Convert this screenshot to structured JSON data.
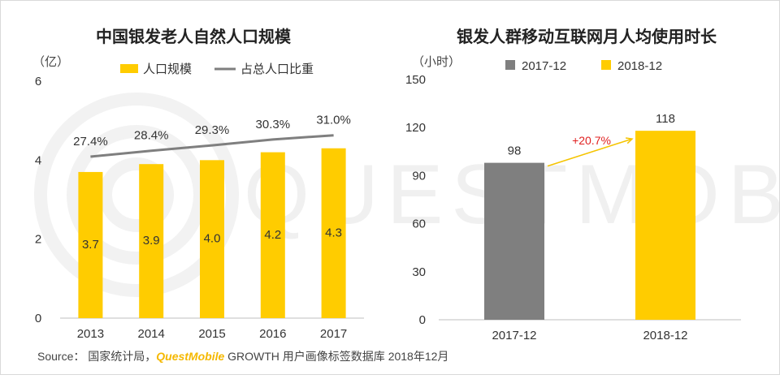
{
  "colors": {
    "yellow": "#FFCC00",
    "gray": "#7F7F7F",
    "line": "#7F7F7F",
    "arrow": "#F5C400",
    "growth": "#E02020"
  },
  "watermark": "QUESTMOBILE",
  "footer": {
    "prefix": "Source：  国家统计局，",
    "brand": "QuestMobile",
    "suffix": " GROWTH 用户画像标签数据库 2018年12月"
  },
  "chart_data": [
    {
      "type": "bar",
      "title": "中国银发老人自然人口规模",
      "unit_label": "（亿）",
      "categories": [
        "2013",
        "2014",
        "2015",
        "2016",
        "2017"
      ],
      "series": [
        {
          "name": "人口规模",
          "type": "bar",
          "values": [
            3.7,
            3.9,
            4.0,
            4.2,
            4.3
          ],
          "labels": [
            "3.7",
            "3.9",
            "4.0",
            "4.2",
            "4.3"
          ]
        },
        {
          "name": "占总人口比重",
          "type": "line",
          "values": [
            27.4,
            28.4,
            29.3,
            30.3,
            31.0
          ],
          "labels": [
            "27.4%",
            "28.4%",
            "29.3%",
            "30.3%",
            "31.0%"
          ]
        }
      ],
      "ylim": [
        0,
        6
      ],
      "yticks": [
        "0",
        "2",
        "4",
        "6"
      ],
      "legend_position": "top"
    },
    {
      "type": "bar",
      "title": "银发人群移动互联网月人均使用时长",
      "unit_label": "（小时）",
      "categories": [
        "2017-12",
        "2018-12"
      ],
      "values": [
        98,
        118
      ],
      "labels": [
        "98",
        "118"
      ],
      "legend": [
        "2017-12",
        "2018-12"
      ],
      "annotation": "+20.7%",
      "ylim": [
        0,
        150
      ],
      "yticks": [
        "0",
        "30",
        "60",
        "90",
        "120",
        "150"
      ],
      "legend_position": "top"
    }
  ]
}
